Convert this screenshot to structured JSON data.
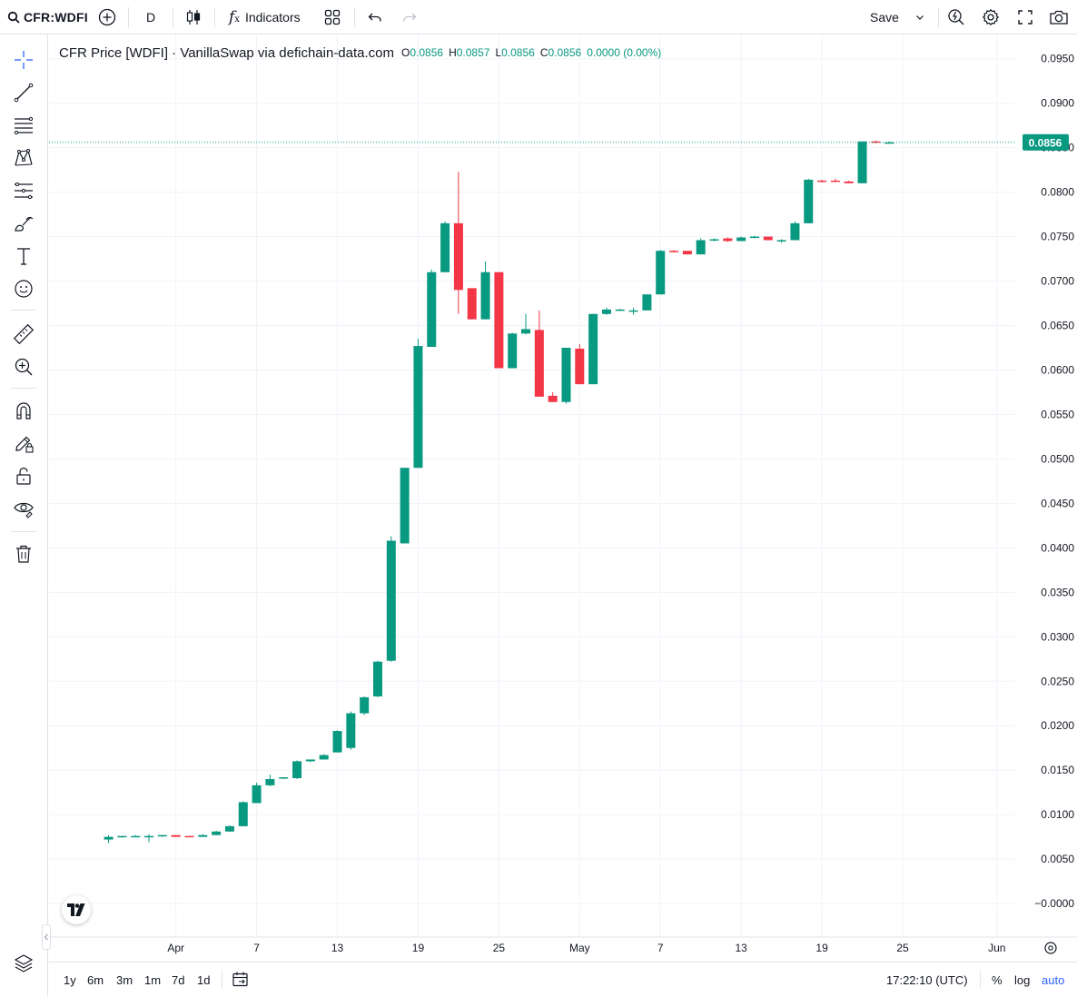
{
  "toolbar": {
    "symbol": "CFR:WDFI",
    "interval": "D",
    "indicators_label": "Indicators",
    "save_label": "Save"
  },
  "legend": {
    "title": "CFR Price [WDFI] · VanillaSwap via defichain-data.com",
    "o_label": "O",
    "o_value": "0.0856",
    "h_label": "H",
    "h_value": "0.0857",
    "l_label": "L",
    "l_value": "0.0856",
    "c_label": "C",
    "c_value": "0.0856",
    "change": "0.0000 (0.00%)"
  },
  "bottom": {
    "ranges": [
      "1y",
      "6m",
      "3m",
      "1m",
      "7d",
      "1d"
    ],
    "clock": "17:22:10 (UTC)",
    "percent_label": "%",
    "log_label": "log",
    "auto_label": "auto"
  },
  "left_tools": [
    "crosshair-icon",
    "trend-line-icon",
    "fib-retracement-icon",
    "pattern-icon",
    "prediction-icon",
    "brush-icon",
    "text-icon",
    "emoji-icon",
    "ruler-icon",
    "zoom-in-icon",
    "magnet-icon",
    "lock-drawing-icon",
    "lock-icon",
    "eye-icon",
    "trash-icon"
  ],
  "colors": {
    "up": "#089981",
    "down": "#f23645",
    "accent": "#2962ff",
    "text": "#131722",
    "grid": "#f0f3fa"
  },
  "chart_data": {
    "type": "candlestick",
    "series_name": "CFR Price [WDFI]",
    "y_ticks": [
      "0.0950",
      "0.0900",
      "0.0850",
      "0.0800",
      "0.0750",
      "0.0700",
      "0.0650",
      "0.0600",
      "0.0550",
      "0.0500",
      "0.0450",
      "0.0400",
      "0.0350",
      "0.0300",
      "0.0250",
      "0.0200",
      "0.0150",
      "0.0100",
      "0.0050",
      "−0.0000"
    ],
    "y_range": [
      -0.0005,
      0.0965
    ],
    "x_ticks": [
      {
        "day": 31,
        "label": "Apr"
      },
      {
        "day": 37,
        "label": "7"
      },
      {
        "day": 43,
        "label": "13"
      },
      {
        "day": 49,
        "label": "19"
      },
      {
        "day": 55,
        "label": "25"
      },
      {
        "day": 61,
        "label": "May"
      },
      {
        "day": 67,
        "label": "7"
      },
      {
        "day": 73,
        "label": "13"
      },
      {
        "day": 79,
        "label": "19"
      },
      {
        "day": 85,
        "label": "25"
      },
      {
        "day": 92,
        "label": "Jun"
      }
    ],
    "x_day_range": [
      26.3,
      93.5
    ],
    "current_price": "0.0856",
    "current_value": 0.0856,
    "candles": [
      {
        "day": 26,
        "o": 0.0072,
        "h": 0.0077,
        "l": 0.0068,
        "c": 0.0075
      },
      {
        "day": 27,
        "o": 0.0075,
        "h": 0.0076,
        "l": 0.0074,
        "c": 0.0076
      },
      {
        "day": 28,
        "o": 0.0076,
        "h": 0.0077,
        "l": 0.0075,
        "c": 0.0076
      },
      {
        "day": 29,
        "o": 0.0076,
        "h": 0.0078,
        "l": 0.0069,
        "c": 0.0076
      },
      {
        "day": 30,
        "o": 0.0076,
        "h": 0.0077,
        "l": 0.0075,
        "c": 0.0077
      },
      {
        "day": 31,
        "o": 0.0077,
        "h": 0.0077,
        "l": 0.0075,
        "c": 0.0075
      },
      {
        "day": 32,
        "o": 0.0076,
        "h": 0.0076,
        "l": 0.0075,
        "c": 0.0075
      },
      {
        "day": 33,
        "o": 0.0075,
        "h": 0.0078,
        "l": 0.0075,
        "c": 0.0077
      },
      {
        "day": 34,
        "o": 0.0077,
        "h": 0.0082,
        "l": 0.0077,
        "c": 0.0081
      },
      {
        "day": 35,
        "o": 0.0081,
        "h": 0.0088,
        "l": 0.0081,
        "c": 0.0087
      },
      {
        "day": 36,
        "o": 0.0087,
        "h": 0.0115,
        "l": 0.0087,
        "c": 0.0114
      },
      {
        "day": 37,
        "o": 0.0113,
        "h": 0.0136,
        "l": 0.0113,
        "c": 0.0133
      },
      {
        "day": 38,
        "o": 0.0133,
        "h": 0.0145,
        "l": 0.0132,
        "c": 0.014
      },
      {
        "day": 39,
        "o": 0.0141,
        "h": 0.0142,
        "l": 0.014,
        "c": 0.0142
      },
      {
        "day": 40,
        "o": 0.0141,
        "h": 0.0161,
        "l": 0.014,
        "c": 0.016
      },
      {
        "day": 41,
        "o": 0.016,
        "h": 0.0162,
        "l": 0.0159,
        "c": 0.0162
      },
      {
        "day": 42,
        "o": 0.0162,
        "h": 0.0168,
        "l": 0.0162,
        "c": 0.0167
      },
      {
        "day": 43,
        "o": 0.017,
        "h": 0.0195,
        "l": 0.017,
        "c": 0.0194
      },
      {
        "day": 44,
        "o": 0.0175,
        "h": 0.0216,
        "l": 0.0173,
        "c": 0.0214
      },
      {
        "day": 45,
        "o": 0.0214,
        "h": 0.0233,
        "l": 0.0212,
        "c": 0.0232
      },
      {
        "day": 46,
        "o": 0.0233,
        "h": 0.0273,
        "l": 0.0232,
        "c": 0.0272
      },
      {
        "day": 47,
        "o": 0.0273,
        "h": 0.0413,
        "l": 0.0272,
        "c": 0.0408
      },
      {
        "day": 48,
        "o": 0.0405,
        "h": 0.049,
        "l": 0.0405,
        "c": 0.049
      },
      {
        "day": 49,
        "o": 0.049,
        "h": 0.0635,
        "l": 0.049,
        "c": 0.0627
      },
      {
        "day": 50,
        "o": 0.0626,
        "h": 0.0713,
        "l": 0.0626,
        "c": 0.071
      },
      {
        "day": 51,
        "o": 0.071,
        "h": 0.0767,
        "l": 0.071,
        "c": 0.0765
      },
      {
        "day": 52,
        "o": 0.0765,
        "h": 0.0823,
        "l": 0.0663,
        "c": 0.069
      },
      {
        "day": 53,
        "o": 0.0692,
        "h": 0.0692,
        "l": 0.0657,
        "c": 0.0657
      },
      {
        "day": 54,
        "o": 0.0657,
        "h": 0.0722,
        "l": 0.0657,
        "c": 0.071
      },
      {
        "day": 55,
        "o": 0.071,
        "h": 0.071,
        "l": 0.0602,
        "c": 0.0602
      },
      {
        "day": 56,
        "o": 0.0602,
        "h": 0.0642,
        "l": 0.0602,
        "c": 0.0641
      },
      {
        "day": 57,
        "o": 0.0641,
        "h": 0.0663,
        "l": 0.064,
        "c": 0.0646
      },
      {
        "day": 58,
        "o": 0.0645,
        "h": 0.0667,
        "l": 0.057,
        "c": 0.057
      },
      {
        "day": 59,
        "o": 0.0571,
        "h": 0.0575,
        "l": 0.0564,
        "c": 0.0564
      },
      {
        "day": 60,
        "o": 0.0564,
        "h": 0.0625,
        "l": 0.0562,
        "c": 0.0625
      },
      {
        "day": 61,
        "o": 0.0624,
        "h": 0.0629,
        "l": 0.0584,
        "c": 0.0584
      },
      {
        "day": 62,
        "o": 0.0584,
        "h": 0.0663,
        "l": 0.0584,
        "c": 0.0663
      },
      {
        "day": 63,
        "o": 0.0663,
        "h": 0.067,
        "l": 0.0662,
        "c": 0.0668
      },
      {
        "day": 64,
        "o": 0.0668,
        "h": 0.0669,
        "l": 0.0667,
        "c": 0.0668
      },
      {
        "day": 65,
        "o": 0.0667,
        "h": 0.067,
        "l": 0.0662,
        "c": 0.0667
      },
      {
        "day": 66,
        "o": 0.0667,
        "h": 0.0685,
        "l": 0.0667,
        "c": 0.0685
      },
      {
        "day": 67,
        "o": 0.0685,
        "h": 0.0735,
        "l": 0.0685,
        "c": 0.0734
      },
      {
        "day": 68,
        "o": 0.0734,
        "h": 0.0735,
        "l": 0.0732,
        "c": 0.0733
      },
      {
        "day": 69,
        "o": 0.0734,
        "h": 0.0734,
        "l": 0.073,
        "c": 0.073
      },
      {
        "day": 70,
        "o": 0.073,
        "h": 0.0748,
        "l": 0.073,
        "c": 0.0746
      },
      {
        "day": 71,
        "o": 0.0746,
        "h": 0.0748,
        "l": 0.0745,
        "c": 0.0747
      },
      {
        "day": 72,
        "o": 0.0748,
        "h": 0.0749,
        "l": 0.0744,
        "c": 0.0745
      },
      {
        "day": 73,
        "o": 0.0745,
        "h": 0.075,
        "l": 0.0745,
        "c": 0.0749
      },
      {
        "day": 74,
        "o": 0.0749,
        "h": 0.0751,
        "l": 0.0748,
        "c": 0.075
      },
      {
        "day": 75,
        "o": 0.075,
        "h": 0.075,
        "l": 0.0746,
        "c": 0.0746
      },
      {
        "day": 76,
        "o": 0.0746,
        "h": 0.0747,
        "l": 0.0743,
        "c": 0.0746
      },
      {
        "day": 77,
        "o": 0.0746,
        "h": 0.0767,
        "l": 0.0746,
        "c": 0.0765
      },
      {
        "day": 78,
        "o": 0.0765,
        "h": 0.0815,
        "l": 0.0765,
        "c": 0.0814
      },
      {
        "day": 79,
        "o": 0.0813,
        "h": 0.0814,
        "l": 0.0811,
        "c": 0.0812
      },
      {
        "day": 80,
        "o": 0.0813,
        "h": 0.0815,
        "l": 0.0811,
        "c": 0.0812
      },
      {
        "day": 81,
        "o": 0.0812,
        "h": 0.0813,
        "l": 0.081,
        "c": 0.081
      },
      {
        "day": 82,
        "o": 0.081,
        "h": 0.0857,
        "l": 0.081,
        "c": 0.0857
      },
      {
        "day": 83,
        "o": 0.0857,
        "h": 0.0858,
        "l": 0.0855,
        "c": 0.0856
      },
      {
        "day": 84,
        "o": 0.0856,
        "h": 0.0857,
        "l": 0.0856,
        "c": 0.0856
      }
    ]
  }
}
